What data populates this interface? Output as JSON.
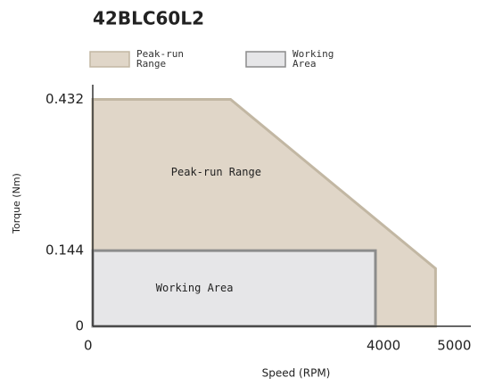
{
  "chart_data": {
    "type": "area",
    "title": "42BLC60L2",
    "x_label": "Speed (RPM)",
    "y_label": "Torque (Nm)",
    "xlim": [
      0,
      5350
    ],
    "xticks": [
      0,
      4000,
      5000
    ],
    "ylim": [
      0,
      0.46
    ],
    "yticks": [
      0,
      0.144,
      0.432
    ],
    "series": [
      {
        "name": "Peak-run Range",
        "color": "#e0d6c8",
        "edge": "#c2b7a3",
        "x": [
          0,
          0,
          1950,
          4850,
          4850
        ],
        "values": [
          0,
          0.432,
          0.432,
          0.11,
          0
        ]
      },
      {
        "name": "Working Area",
        "color": "#e6e6e8",
        "edge": "#8c8c8c",
        "x": [
          0,
          0,
          4000,
          4000
        ],
        "values": [
          0,
          0.144,
          0.144,
          0
        ]
      }
    ]
  }
}
